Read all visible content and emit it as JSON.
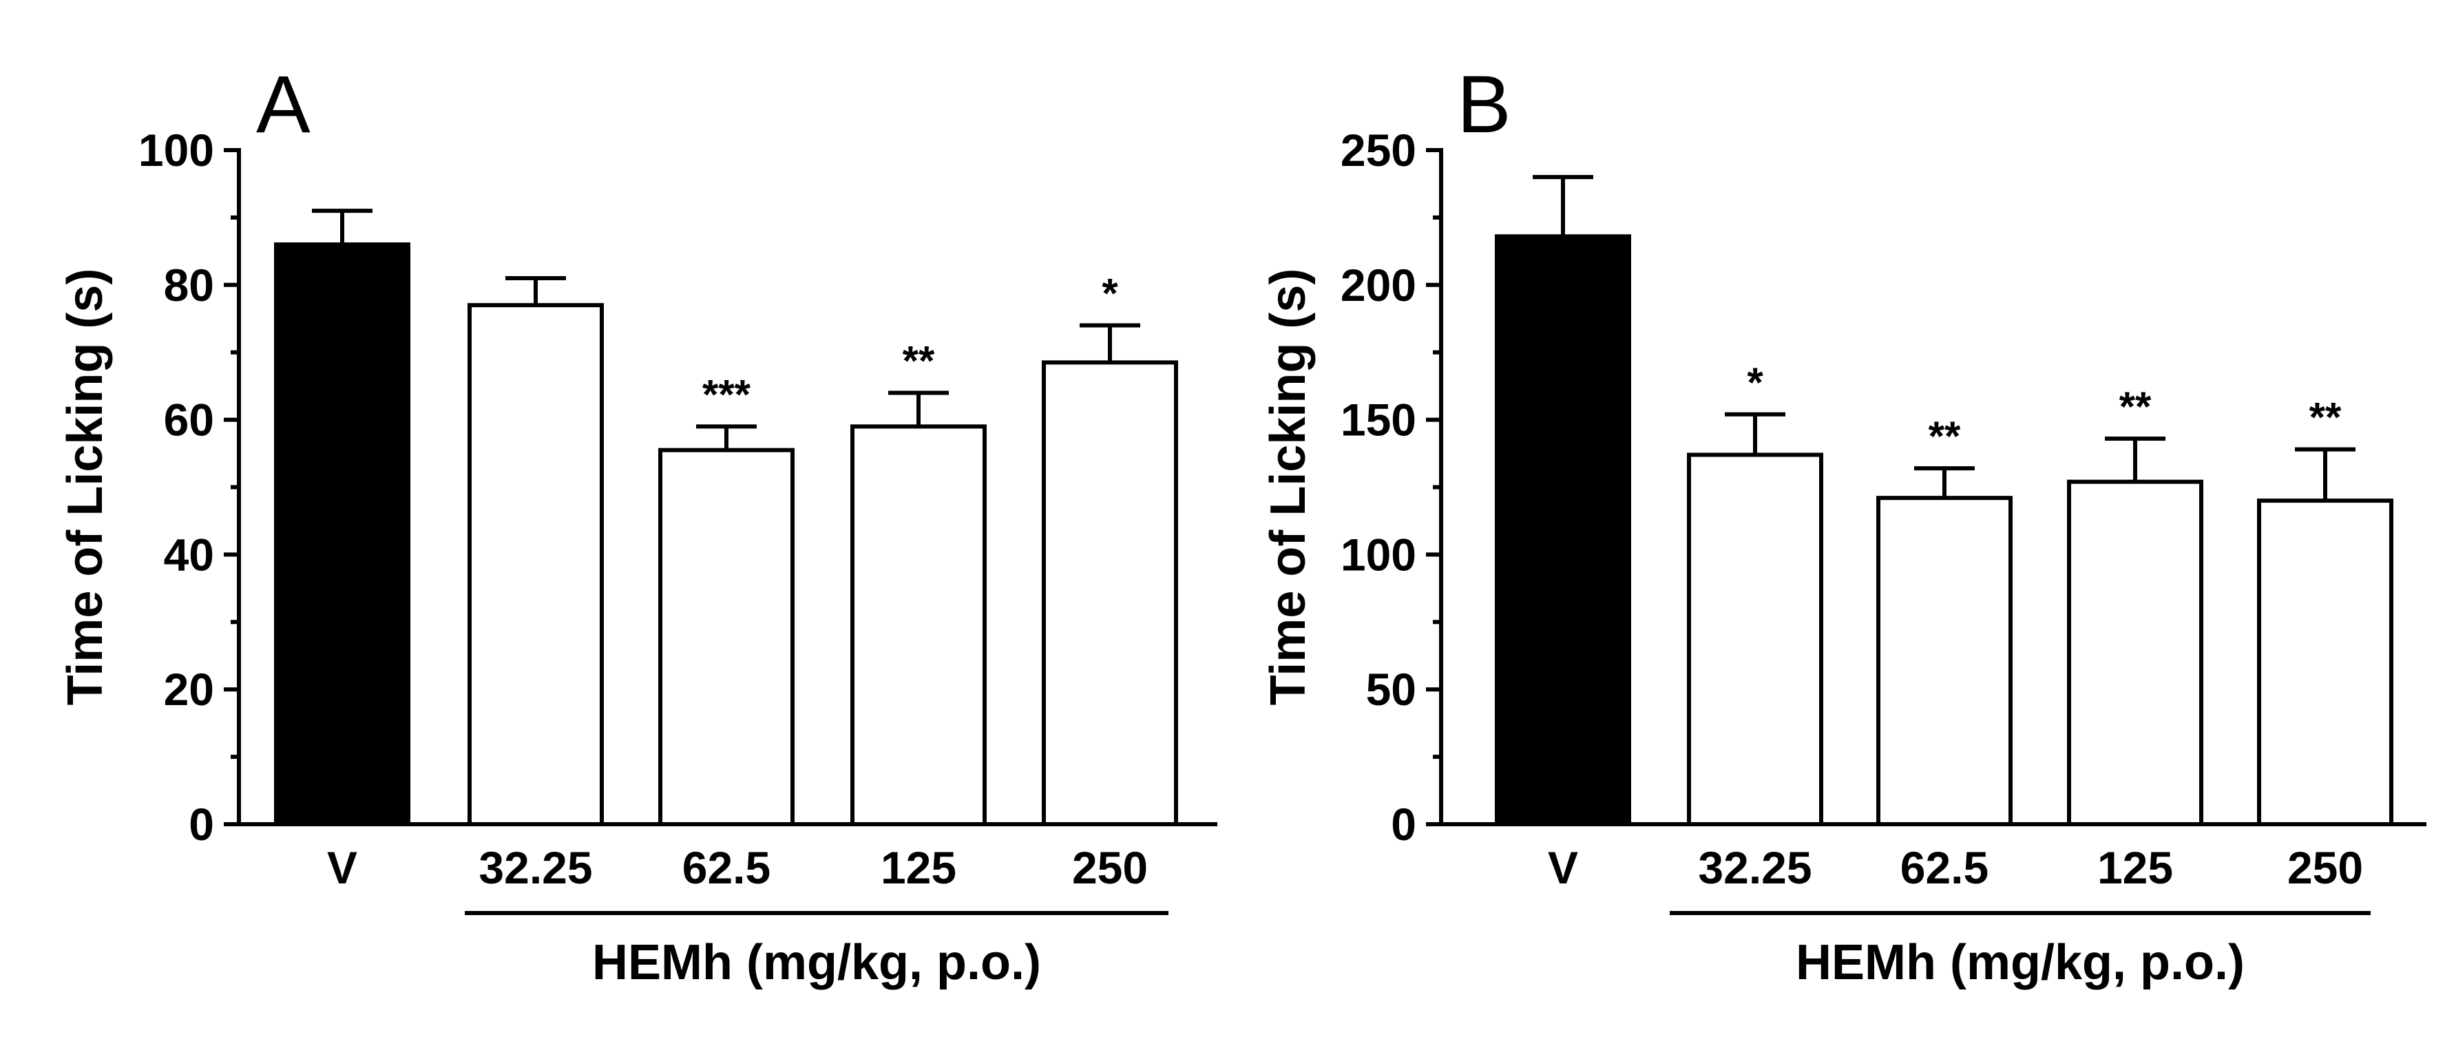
{
  "chart_data": [
    {
      "panel": "A",
      "type": "bar",
      "ylabel": "Time of Licking (s)",
      "ylim": [
        0,
        100
      ],
      "yticks": [
        0,
        20,
        40,
        60,
        80,
        100
      ],
      "categories": [
        "V",
        "32.25",
        "62.5",
        "125",
        "250"
      ],
      "values": [
        86,
        77,
        55.5,
        59,
        68.5
      ],
      "errors": [
        5,
        4,
        3.5,
        5,
        5.5
      ],
      "fills": [
        "#000000",
        "#ffffff",
        "#ffffff",
        "#ffffff",
        "#ffffff"
      ],
      "significance": [
        "",
        "",
        "***",
        "**",
        "*"
      ],
      "group_label": "HEMh (mg/kg, p.o.)"
    },
    {
      "panel": "B",
      "type": "bar",
      "ylabel": "Time of Licking (s)",
      "ylim": [
        0,
        250
      ],
      "yticks": [
        0,
        50,
        100,
        150,
        200,
        250
      ],
      "categories": [
        "V",
        "32.25",
        "62.5",
        "125",
        "250"
      ],
      "values": [
        218,
        137,
        121,
        127,
        120
      ],
      "errors": [
        22,
        15,
        11,
        16,
        19
      ],
      "fills": [
        "#000000",
        "#ffffff",
        "#ffffff",
        "#ffffff",
        "#ffffff"
      ],
      "significance": [
        "",
        "*",
        "**",
        "**",
        "**"
      ],
      "group_label": "HEMh (mg/kg, p.o.)"
    }
  ]
}
